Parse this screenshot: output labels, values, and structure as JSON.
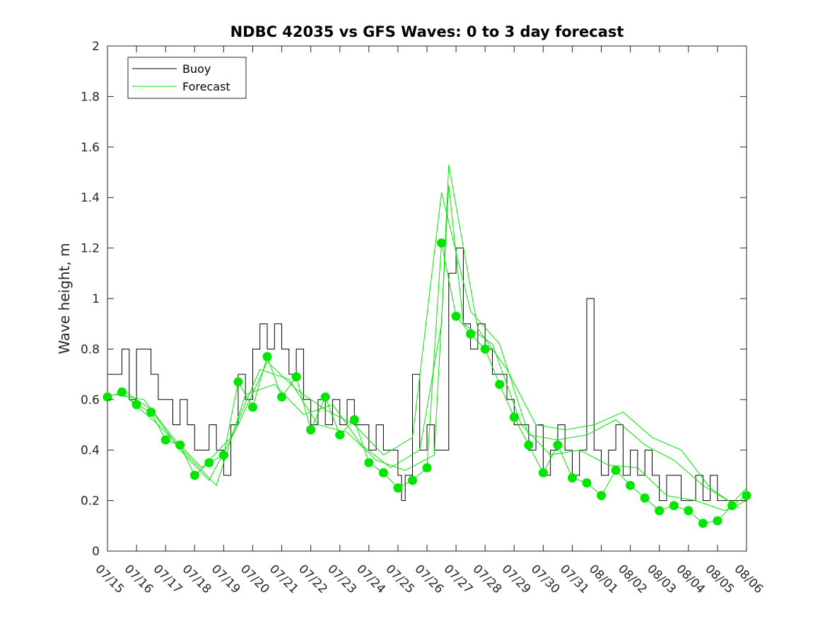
{
  "chart_data": {
    "type": "line",
    "title": "NDBC 42035 vs GFS Waves: 0 to 3 day forecast",
    "ylabel": "Wave height, m",
    "xlabel": "",
    "ylim": [
      0,
      2
    ],
    "xlim": [
      "2024-07-15",
      "2024-08-06"
    ],
    "y_ticks": [
      0,
      0.2,
      0.4,
      0.6,
      0.8,
      1,
      1.2,
      1.4,
      1.6,
      1.8,
      2
    ],
    "y_tick_labels": [
      "0",
      "0.2",
      "0.4",
      "0.6",
      "0.8",
      "1",
      "1.2",
      "1.4",
      "1.6",
      "1.8",
      "2"
    ],
    "x_tick_labels": [
      "07/15",
      "07/16",
      "07/17",
      "07/18",
      "07/19",
      "07/20",
      "07/21",
      "07/22",
      "07/23",
      "07/24",
      "07/25",
      "07/26",
      "07/27",
      "07/28",
      "07/29",
      "07/30",
      "07/31",
      "08/01",
      "08/02",
      "08/03",
      "08/04",
      "08/05",
      "08/06"
    ],
    "grid": false,
    "legend": {
      "position": "top-left",
      "entries": [
        {
          "label": "Buoy",
          "color": "#000000"
        },
        {
          "label": "Forecast",
          "color": "#00e600"
        }
      ]
    },
    "series": [
      {
        "name": "Buoy",
        "color": "#000000",
        "x": [
          "2024-07-15 00:00",
          "2024-07-15 12:00",
          "2024-07-15 18:00",
          "2024-07-16 00:00",
          "2024-07-16 06:00",
          "2024-07-16 12:00",
          "2024-07-16 18:00",
          "2024-07-17 00:00",
          "2024-07-17 06:00",
          "2024-07-17 12:00",
          "2024-07-17 18:00",
          "2024-07-18 00:00",
          "2024-07-18 06:00",
          "2024-07-18 12:00",
          "2024-07-18 18:00",
          "2024-07-19 00:00",
          "2024-07-19 06:00",
          "2024-07-19 12:00",
          "2024-07-19 18:00",
          "2024-07-20 00:00",
          "2024-07-20 06:00",
          "2024-07-20 12:00",
          "2024-07-20 18:00",
          "2024-07-21 00:00",
          "2024-07-21 06:00",
          "2024-07-21 12:00",
          "2024-07-21 18:00",
          "2024-07-22 00:00",
          "2024-07-22 06:00",
          "2024-07-22 12:00",
          "2024-07-22 18:00",
          "2024-07-23 00:00",
          "2024-07-23 06:00",
          "2024-07-23 12:00",
          "2024-07-23 18:00",
          "2024-07-24 00:00",
          "2024-07-24 06:00",
          "2024-07-24 12:00",
          "2024-07-24 18:00",
          "2024-07-25 00:00",
          "2024-07-25 03:00",
          "2024-07-25 06:00",
          "2024-07-25 12:00",
          "2024-07-25 18:00",
          "2024-07-26 00:00",
          "2024-07-26 06:00",
          "2024-07-26 12:00",
          "2024-07-26 18:00",
          "2024-07-27 00:00",
          "2024-07-27 06:00",
          "2024-07-27 12:00",
          "2024-07-27 18:00",
          "2024-07-28 00:00",
          "2024-07-28 06:00",
          "2024-07-28 12:00",
          "2024-07-28 18:00",
          "2024-07-29 00:00",
          "2024-07-29 06:00",
          "2024-07-29 12:00",
          "2024-07-29 18:00",
          "2024-07-30 00:00",
          "2024-07-30 06:00",
          "2024-07-30 12:00",
          "2024-07-30 18:00",
          "2024-07-31 00:00",
          "2024-07-31 06:00",
          "2024-07-31 12:00",
          "2024-07-31 18:00",
          "2024-08-01 00:00",
          "2024-08-01 06:00",
          "2024-08-01 12:00",
          "2024-08-01 18:00",
          "2024-08-02 00:00",
          "2024-08-02 06:00",
          "2024-08-02 12:00",
          "2024-08-02 18:00",
          "2024-08-03 00:00",
          "2024-08-03 06:00",
          "2024-08-03 12:00",
          "2024-08-03 18:00",
          "2024-08-04 00:00",
          "2024-08-04 06:00",
          "2024-08-04 12:00",
          "2024-08-04 18:00",
          "2024-08-05 00:00",
          "2024-08-05 06:00",
          "2024-08-05 12:00",
          "2024-08-05 18:00"
        ],
        "y": [
          0.7,
          0.8,
          0.6,
          0.8,
          0.8,
          0.7,
          0.6,
          0.6,
          0.5,
          0.6,
          0.5,
          0.4,
          0.4,
          0.5,
          0.4,
          0.3,
          0.5,
          0.7,
          0.6,
          0.8,
          0.9,
          0.8,
          0.9,
          0.8,
          0.7,
          0.8,
          0.6,
          0.5,
          0.6,
          0.5,
          0.6,
          0.5,
          0.6,
          0.5,
          0.5,
          0.4,
          0.5,
          0.4,
          0.4,
          0.3,
          0.2,
          0.3,
          0.7,
          0.4,
          0.5,
          0.4,
          0.4,
          1.1,
          1.2,
          0.9,
          0.8,
          0.9,
          0.8,
          0.7,
          0.7,
          0.6,
          0.5,
          0.5,
          0.4,
          0.5,
          0.3,
          0.4,
          0.5,
          0.4,
          0.3,
          0.4,
          1.0,
          0.4,
          0.3,
          0.4,
          0.5,
          0.3,
          0.4,
          0.3,
          0.4,
          0.3,
          0.2,
          0.3,
          0.3,
          0.2,
          0.2,
          0.3,
          0.2,
          0.3,
          0.2,
          0.2,
          0.2,
          0.2
        ]
      },
      {
        "name": "Forecast",
        "color": "#00e600",
        "x": [
          "2024-07-15 00:00",
          "2024-07-15 12:00",
          "2024-07-16 00:00",
          "2024-07-16 12:00",
          "2024-07-17 00:00",
          "2024-07-17 12:00",
          "2024-07-18 00:00",
          "2024-07-18 12:00",
          "2024-07-19 00:00",
          "2024-07-19 12:00",
          "2024-07-20 00:00",
          "2024-07-20 12:00",
          "2024-07-21 00:00",
          "2024-07-21 12:00",
          "2024-07-22 00:00",
          "2024-07-22 12:00",
          "2024-07-23 00:00",
          "2024-07-23 12:00",
          "2024-07-24 00:00",
          "2024-07-24 12:00",
          "2024-07-25 00:00",
          "2024-07-25 12:00",
          "2024-07-26 00:00",
          "2024-07-26 12:00",
          "2024-07-27 00:00",
          "2024-07-27 12:00",
          "2024-07-28 00:00",
          "2024-07-28 12:00",
          "2024-07-29 00:00",
          "2024-07-29 12:00",
          "2024-07-30 00:00",
          "2024-07-30 12:00",
          "2024-07-31 00:00",
          "2024-07-31 12:00",
          "2024-08-01 00:00",
          "2024-08-01 12:00",
          "2024-08-02 00:00",
          "2024-08-02 12:00",
          "2024-08-03 00:00",
          "2024-08-03 12:00",
          "2024-08-04 00:00",
          "2024-08-04 12:00",
          "2024-08-05 00:00",
          "2024-08-05 12:00",
          "2024-08-06 00:00"
        ],
        "y": [
          0.61,
          0.63,
          0.58,
          0.55,
          0.44,
          0.42,
          0.3,
          0.35,
          0.38,
          0.67,
          0.57,
          0.77,
          0.61,
          0.69,
          0.48,
          0.61,
          0.46,
          0.52,
          0.35,
          0.31,
          0.25,
          0.28,
          0.33,
          1.22,
          0.93,
          0.86,
          0.8,
          0.66,
          0.53,
          0.42,
          0.31,
          0.42,
          0.29,
          0.27,
          0.22,
          0.32,
          0.26,
          0.21,
          0.16,
          0.18,
          0.16,
          0.11,
          0.12,
          0.18,
          0.22
        ]
      },
      {
        "name": "Forecast",
        "color": "#00e600",
        "x": [
          "2024-07-15 06:00",
          "2024-07-16 06:00",
          "2024-07-17 06:00",
          "2024-07-18 06:00",
          "2024-07-19 06:00",
          "2024-07-20 06:00",
          "2024-07-21 06:00",
          "2024-07-22 06:00",
          "2024-07-23 06:00",
          "2024-07-24 06:00",
          "2024-07-25 06:00",
          "2024-07-26 06:00",
          "2024-07-26 18:00",
          "2024-07-27 06:00",
          "2024-07-28 06:00",
          "2024-07-29 06:00",
          "2024-07-30 06:00",
          "2024-07-31 06:00",
          "2024-08-01 06:00",
          "2024-08-02 06:00",
          "2024-08-03 06:00",
          "2024-08-04 06:00",
          "2024-08-05 06:00",
          "2024-08-06 00:00"
        ],
        "y": [
          0.62,
          0.6,
          0.45,
          0.33,
          0.45,
          0.72,
          0.68,
          0.5,
          0.47,
          0.36,
          0.32,
          0.38,
          1.45,
          0.9,
          0.82,
          0.5,
          0.38,
          0.4,
          0.34,
          0.33,
          0.22,
          0.2,
          0.16,
          0.2
        ]
      },
      {
        "name": "Forecast",
        "color": "#00e600",
        "x": [
          "2024-07-15 18:00",
          "2024-07-16 18:00",
          "2024-07-17 18:00",
          "2024-07-18 18:00",
          "2024-07-19 18:00",
          "2024-07-20 18:00",
          "2024-07-21 18:00",
          "2024-07-22 18:00",
          "2024-07-23 18:00",
          "2024-07-24 18:00",
          "2024-07-25 18:00",
          "2024-07-26 12:00",
          "2024-07-26 18:00",
          "2024-07-27 18:00",
          "2024-07-28 18:00",
          "2024-07-29 18:00",
          "2024-07-30 18:00",
          "2024-07-31 18:00",
          "2024-08-01 18:00",
          "2024-08-02 18:00",
          "2024-08-03 18:00",
          "2024-08-04 18:00",
          "2024-08-05 18:00"
        ],
        "y": [
          0.6,
          0.5,
          0.38,
          0.26,
          0.62,
          0.66,
          0.54,
          0.58,
          0.42,
          0.33,
          0.4,
          0.9,
          1.53,
          0.88,
          0.72,
          0.5,
          0.48,
          0.5,
          0.55,
          0.45,
          0.4,
          0.25,
          0.17
        ]
      },
      {
        "name": "Forecast",
        "color": "#00e600",
        "x": [
          "2024-07-15 12:00",
          "2024-07-16 12:00",
          "2024-07-17 12:00",
          "2024-07-18 12:00",
          "2024-07-19 12:00",
          "2024-07-20 12:00",
          "2024-07-21 12:00",
          "2024-07-22 12:00",
          "2024-07-23 12:00",
          "2024-07-24 12:00",
          "2024-07-25 12:00",
          "2024-07-26 12:00",
          "2024-07-27 12:00",
          "2024-07-28 12:00",
          "2024-07-29 12:00",
          "2024-07-30 12:00",
          "2024-07-31 12:00",
          "2024-08-01 12:00",
          "2024-08-02 12:00",
          "2024-08-03 12:00",
          "2024-08-04 12:00",
          "2024-08-05 12:00",
          "2024-08-06 00:00"
        ],
        "y": [
          0.64,
          0.56,
          0.4,
          0.28,
          0.5,
          0.75,
          0.64,
          0.56,
          0.5,
          0.38,
          0.45,
          1.42,
          0.95,
          0.82,
          0.46,
          0.44,
          0.46,
          0.52,
          0.42,
          0.36,
          0.26,
          0.19,
          0.25
        ]
      }
    ]
  }
}
